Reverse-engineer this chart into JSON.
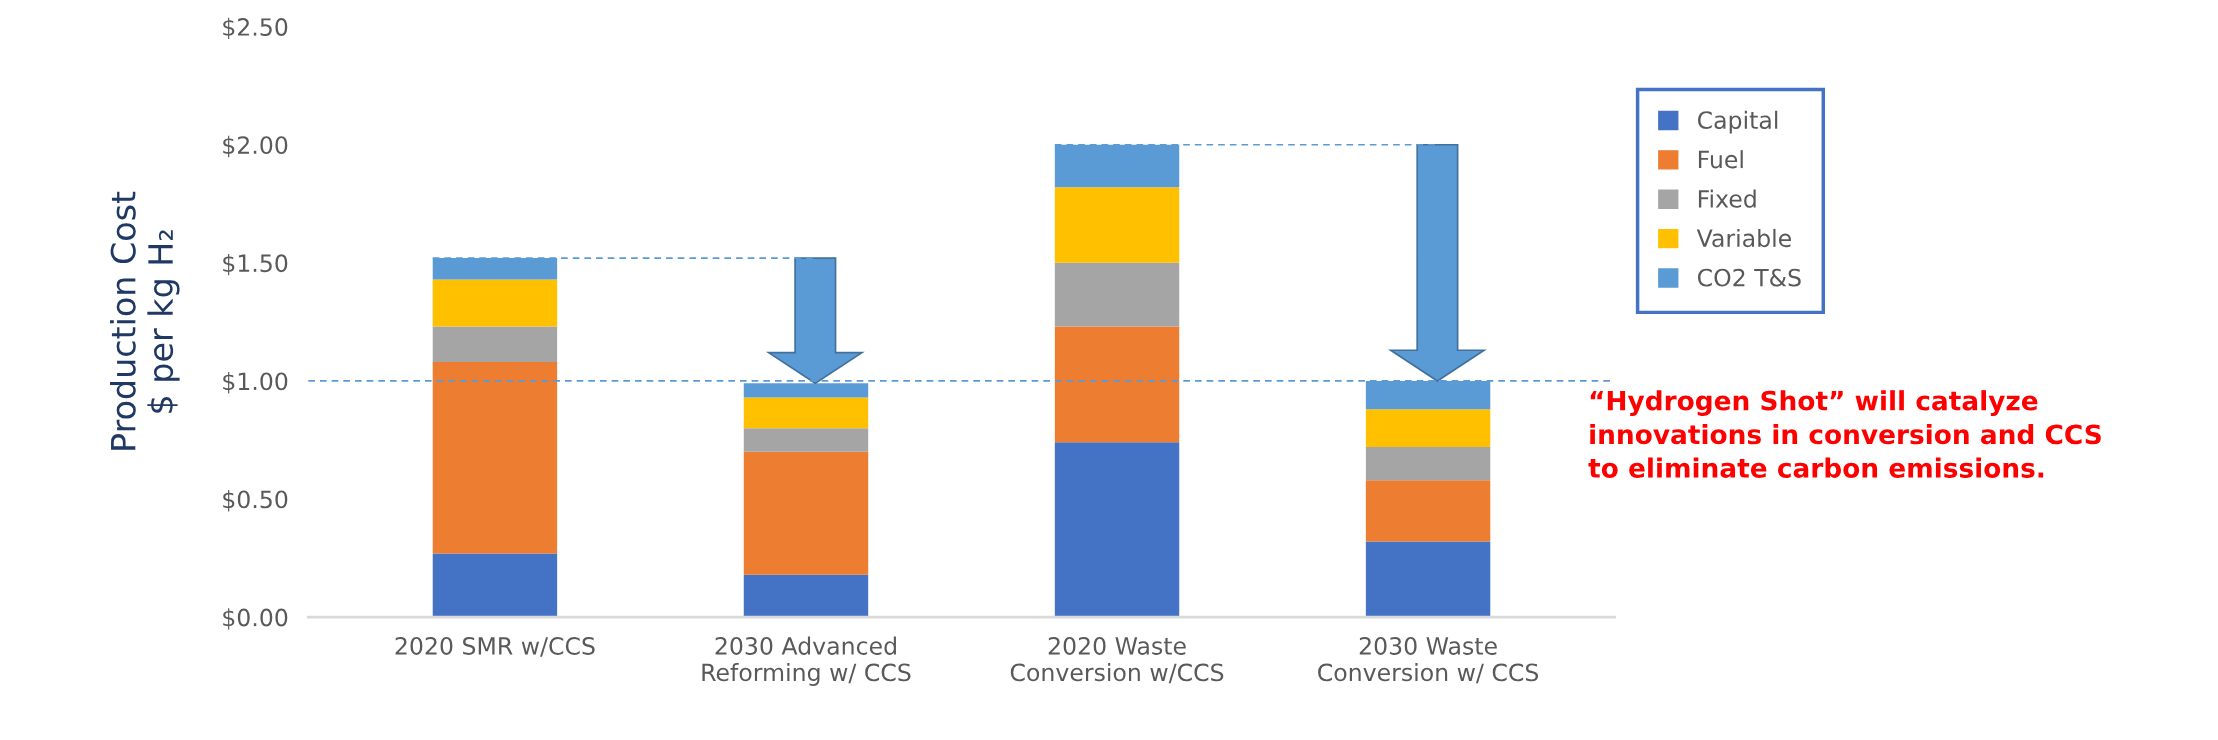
{
  "chart_data": {
    "type": "bar",
    "stacked": true,
    "categories": [
      "2020 SMR w/CCS",
      "2030 Advanced\nReforming w/ CCS",
      "2020 Waste\nConversion w/CCS",
      "2030 Waste\nConversion w/ CCS"
    ],
    "series": [
      {
        "name": "Capital",
        "color": "#4472c4",
        "values": [
          0.27,
          0.18,
          0.74,
          0.32
        ]
      },
      {
        "name": "Fuel",
        "color": "#ed7d31",
        "values": [
          0.81,
          0.52,
          0.49,
          0.26
        ]
      },
      {
        "name": "Fixed",
        "color": "#a5a5a5",
        "values": [
          0.15,
          0.1,
          0.27,
          0.14
        ]
      },
      {
        "name": "Variable",
        "color": "#ffc000",
        "values": [
          0.2,
          0.13,
          0.32,
          0.16
        ]
      },
      {
        "name": "CO2 T&S",
        "color": "#5b9bd5",
        "values": [
          0.09,
          0.06,
          0.18,
          0.12
        ]
      }
    ],
    "ylabel": "Production Cost\n$ per kg H₂",
    "ylim": [
      0,
      2.5
    ],
    "yticks": [
      {
        "value": 0,
        "label": "$0.00"
      },
      {
        "value": 0.5,
        "label": "$0.50"
      },
      {
        "value": 1,
        "label": "$1.00"
      },
      {
        "value": 1.5,
        "label": "$1.50"
      },
      {
        "value": 2,
        "label": "$2.00"
      },
      {
        "value": 2.5,
        "label": "$2.50"
      }
    ],
    "ref_lines": [
      {
        "axis": "y",
        "value": 1.0,
        "color": "#5b9bd5",
        "line_style": "dashed"
      },
      {
        "axis": "y",
        "value": 1.52,
        "color": "#5b9bd5",
        "line_style": "dashed"
      },
      {
        "axis": "y",
        "value": 2.0,
        "color": "#5b9bd5",
        "line_style": "dashed"
      }
    ],
    "annotations": [
      "“Hydrogen Shot” will catalyze\ninnovations in conversion and CCS\nto eliminate carbon emissions."
    ],
    "grid": false,
    "legend": "right"
  }
}
